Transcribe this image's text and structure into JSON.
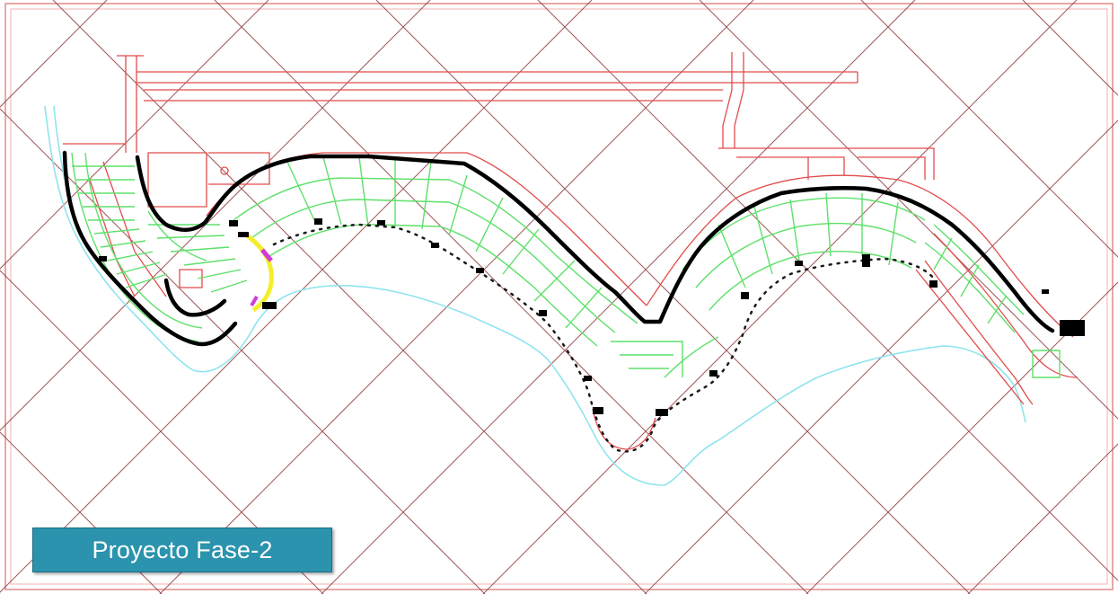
{
  "caption": {
    "label": "Proyecto Fase-2"
  },
  "colors": {
    "background": "#ffffff",
    "grid": "#8e3a3a",
    "roads": "#e34b4b",
    "lots": "#5ee06a",
    "water": "#8fe4ee",
    "main_route": "#000000",
    "dotted_route": "#1a1a1a",
    "highlight": "#f4ee2a",
    "accent": "#d23ad6",
    "label_bg": "#2b93ae",
    "label_text": "#ffffff"
  },
  "layers": [
    "grid",
    "roads",
    "lots",
    "water",
    "main-route",
    "dotted-route",
    "markers"
  ]
}
